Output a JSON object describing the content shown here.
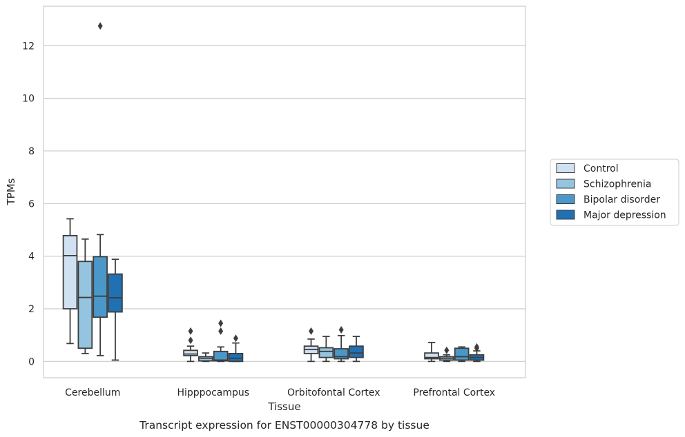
{
  "chart_data": {
    "type": "box",
    "title": "",
    "caption": "Transcript expression for ENST00000304778 by tissue",
    "xlabel": "Tissue",
    "ylabel": "TPMs",
    "ylim": [
      -0.62,
      13.5
    ],
    "yticks": [
      0,
      2,
      4,
      6,
      8,
      10,
      12
    ],
    "grid": "horizontal",
    "legend_position": "right",
    "categories": [
      "Cerebellum",
      "Hipppocampus",
      "Orbitofontal Cortex",
      "Prefrontal Cortex"
    ],
    "series": [
      {
        "name": "Control",
        "color": "#d0e1f2",
        "boxes": [
          {
            "whislo": 0.68,
            "q1": 2.0,
            "med": 4.02,
            "q3": 4.78,
            "whishi": 5.42,
            "fliers": []
          },
          {
            "whislo": 0.0,
            "q1": 0.22,
            "med": 0.28,
            "q3": 0.42,
            "whishi": 0.58,
            "fliers": [
              0.8,
              1.15
            ]
          },
          {
            "whislo": 0.0,
            "q1": 0.3,
            "med": 0.45,
            "q3": 0.58,
            "whishi": 0.85,
            "fliers": [
              1.15
            ]
          },
          {
            "whislo": 0.0,
            "q1": 0.1,
            "med": 0.15,
            "q3": 0.32,
            "whishi": 0.72,
            "fliers": []
          }
        ]
      },
      {
        "name": "Schizophrenia",
        "color": "#94c4df",
        "boxes": [
          {
            "whislo": 0.3,
            "q1": 0.5,
            "med": 2.43,
            "q3": 3.8,
            "whishi": 4.65,
            "fliers": []
          },
          {
            "whislo": 0.0,
            "q1": 0.02,
            "med": 0.12,
            "q3": 0.18,
            "whishi": 0.32,
            "fliers": []
          },
          {
            "whislo": 0.0,
            "q1": 0.15,
            "med": 0.38,
            "q3": 0.52,
            "whishi": 0.95,
            "fliers": []
          },
          {
            "whislo": 0.0,
            "q1": 0.05,
            "med": 0.12,
            "q3": 0.18,
            "whishi": 0.25,
            "fliers": [
              0.42
            ]
          }
        ]
      },
      {
        "name": "Bipolar disorder",
        "color": "#4a98c9",
        "boxes": [
          {
            "whislo": 0.22,
            "q1": 1.68,
            "med": 2.48,
            "q3": 3.98,
            "whishi": 4.82,
            "fliers": [
              12.75
            ]
          },
          {
            "whislo": 0.0,
            "q1": 0.02,
            "med": 0.05,
            "q3": 0.38,
            "whishi": 0.55,
            "fliers": [
              1.15,
              1.45
            ]
          },
          {
            "whislo": 0.0,
            "q1": 0.1,
            "med": 0.18,
            "q3": 0.48,
            "whishi": 0.98,
            "fliers": [
              1.2
            ]
          },
          {
            "whislo": 0.0,
            "q1": 0.05,
            "med": 0.18,
            "q3": 0.5,
            "whishi": 0.55,
            "fliers": []
          }
        ]
      },
      {
        "name": "Major depression",
        "color": "#2070b4",
        "boxes": [
          {
            "whislo": 0.05,
            "q1": 1.88,
            "med": 2.42,
            "q3": 3.32,
            "whishi": 3.88,
            "fliers": []
          },
          {
            "whislo": 0.0,
            "q1": 0.0,
            "med": 0.12,
            "q3": 0.3,
            "whishi": 0.7,
            "fliers": [
              0.88
            ]
          },
          {
            "whislo": 0.0,
            "q1": 0.15,
            "med": 0.32,
            "q3": 0.58,
            "whishi": 0.95,
            "fliers": []
          },
          {
            "whislo": 0.0,
            "q1": 0.05,
            "med": 0.15,
            "q3": 0.25,
            "whishi": 0.4,
            "fliers": [
              0.5,
              0.55
            ]
          }
        ]
      }
    ]
  }
}
